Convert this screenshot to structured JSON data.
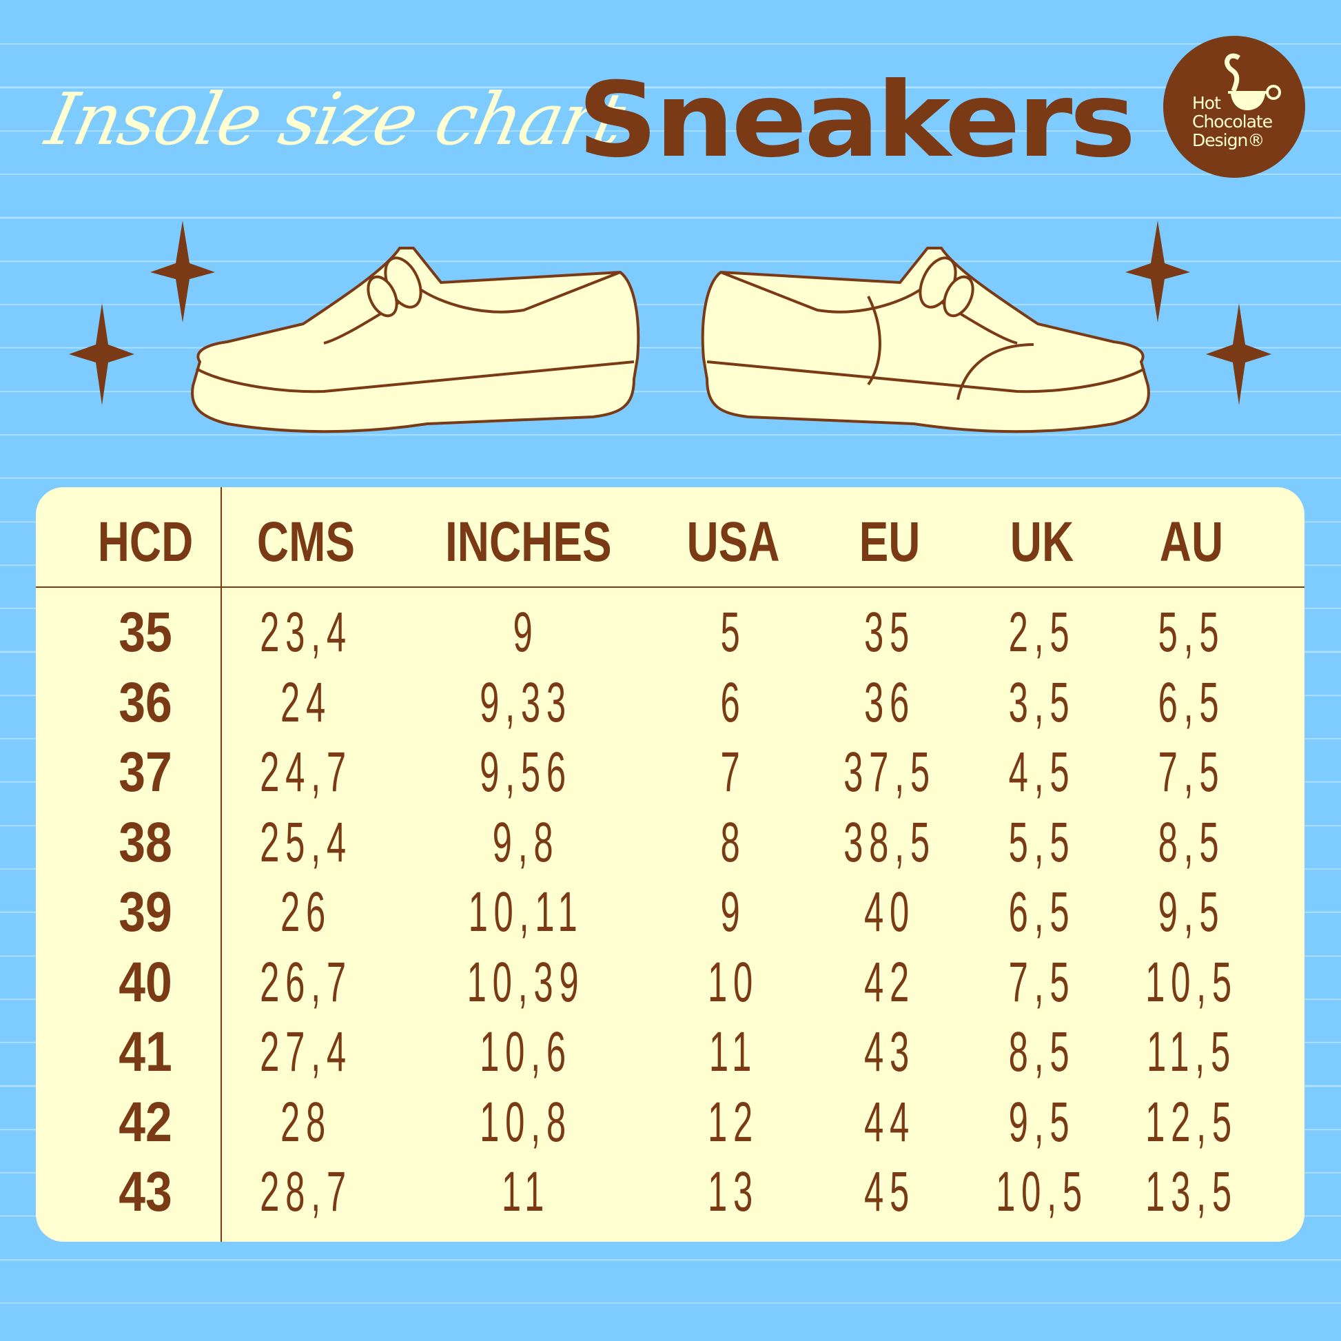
{
  "header": {
    "script_title": "Insole size chart",
    "title": "Sneakers"
  },
  "logo": {
    "line1": "Hot",
    "line2": "Chocolate",
    "line3": "Design®"
  },
  "colors": {
    "background": "#7dcbff",
    "cream": "#ffffd2",
    "brown": "#7a3a16"
  },
  "table": {
    "columns": [
      "HCD",
      "CMS",
      "INCHES",
      "USA",
      "EU",
      "UK",
      "AU"
    ],
    "rows": [
      [
        "35",
        "23,4",
        "9",
        "5",
        "35",
        "2,5",
        "5,5"
      ],
      [
        "36",
        "24",
        "9,33",
        "6",
        "36",
        "3,5",
        "6,5"
      ],
      [
        "37",
        "24,7",
        "9,56",
        "7",
        "37,5",
        "4,5",
        "7,5"
      ],
      [
        "38",
        "25,4",
        "9,8",
        "8",
        "38,5",
        "5,5",
        "8,5"
      ],
      [
        "39",
        "26",
        "10,11",
        "9",
        "40",
        "6,5",
        "9,5"
      ],
      [
        "40",
        "26,7",
        "10,39",
        "10",
        "42",
        "7,5",
        "10,5"
      ],
      [
        "41",
        "27,4",
        "10,6",
        "11",
        "43",
        "8,5",
        "11,5"
      ],
      [
        "42",
        "28",
        "10,8",
        "12",
        "44",
        "9,5",
        "12,5"
      ],
      [
        "43",
        "28,7",
        "11",
        "13",
        "45",
        "10,5",
        "13,5"
      ]
    ]
  }
}
